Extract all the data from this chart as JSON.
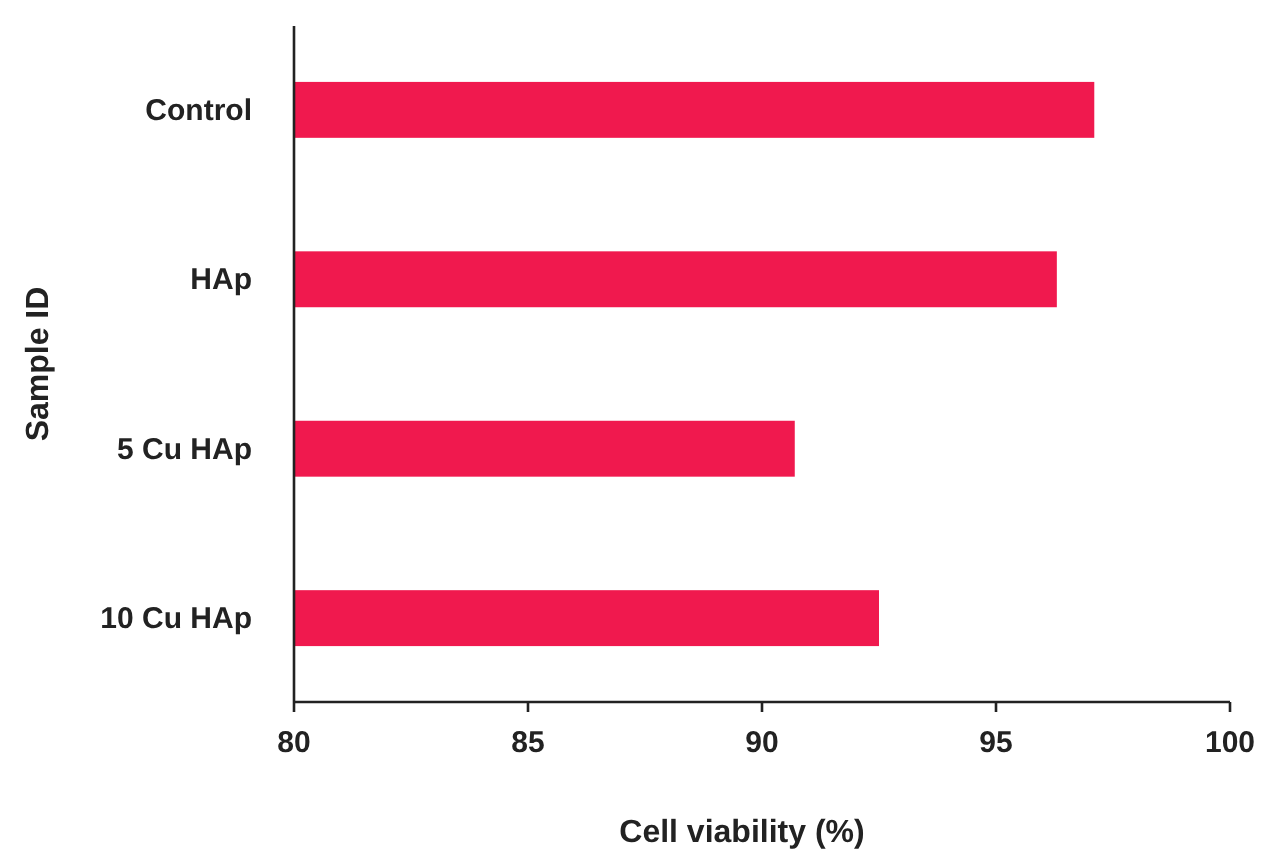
{
  "chart_data": {
    "type": "bar",
    "orientation": "horizontal",
    "xlabel": "Cell viability (%)",
    "ylabel": "Sample ID",
    "categories": [
      "Control",
      "HAp",
      "5 Cu HAp",
      "10 Cu HAp"
    ],
    "values": [
      97.1,
      96.3,
      90.7,
      92.5
    ],
    "color": "#f0194e",
    "xlim": [
      80,
      100
    ],
    "xticks": [
      80,
      85,
      90,
      95,
      100
    ],
    "grid": false
  }
}
